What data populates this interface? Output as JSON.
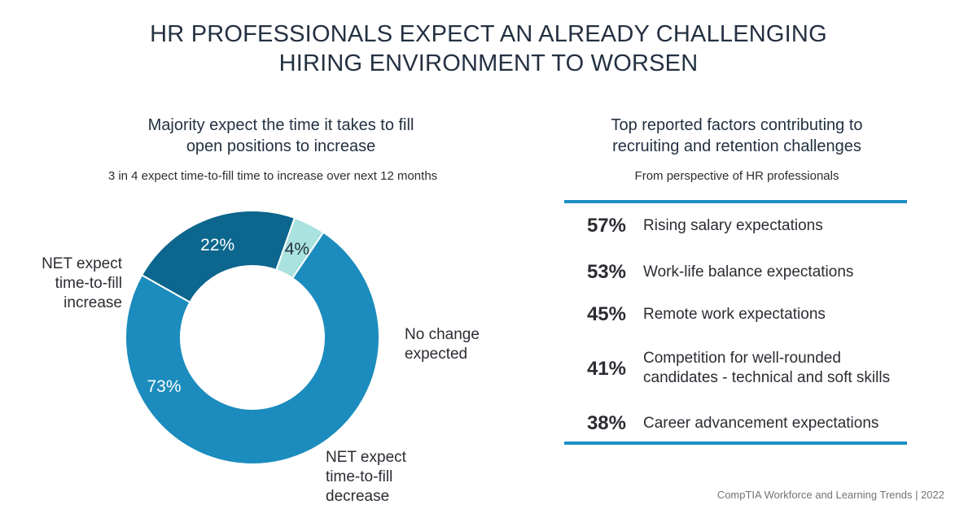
{
  "title": {
    "line1": "HR PROFESSIONALS EXPECT AN ALREADY CHALLENGING",
    "line2": "HIRING ENVIRONMENT TO WORSEN"
  },
  "left_panel": {
    "heading_line1": "Majority expect the time it takes to fill",
    "heading_line2": "open positions to increase",
    "note": "3 in 4 expect time-to-fill time to increase over next 12 months"
  },
  "right_panel": {
    "heading_line1": "Top reported factors contributing to",
    "heading_line2": "recruiting and retention challenges",
    "note": "From perspective of HR professionals"
  },
  "colors": {
    "increase": "#1b8cbd",
    "no_change": "#0c668d",
    "decrease": "#a9e2de",
    "rule": "#1e8fc4",
    "slice_label_light": "#ffffff",
    "slice_label_dark": "#243142"
  },
  "chart_data": [
    {
      "type": "pie",
      "style": "donut",
      "slices": [
        {
          "key": "increase",
          "label_lines": [
            "NET expect",
            "time-to-fill",
            "increase"
          ],
          "value": 73,
          "value_label": "73%"
        },
        {
          "key": "no_change",
          "label_lines": [
            "No change",
            "expected"
          ],
          "value": 22,
          "value_label": "22%"
        },
        {
          "key": "decrease",
          "label_lines": [
            "NET expect",
            "time-to-fill",
            "decrease"
          ],
          "value": 4,
          "value_label": "4%"
        }
      ]
    },
    {
      "type": "table",
      "rows": [
        {
          "value": 57,
          "value_label": "57%",
          "label_lines": [
            "Rising salary expectations"
          ]
        },
        {
          "value": 53,
          "value_label": "53%",
          "label_lines": [
            "Work-life balance expectations"
          ]
        },
        {
          "value": 45,
          "value_label": "45%",
          "label_lines": [
            "Remote work expectations"
          ]
        },
        {
          "value": 41,
          "value_label": "41%",
          "label_lines": [
            "Competition for well-rounded",
            "candidates - technical and soft skills"
          ]
        },
        {
          "value": 38,
          "value_label": "38%",
          "label_lines": [
            "Career advancement expectations"
          ]
        }
      ]
    }
  ],
  "source": "CompTIA Workforce and Learning Trends | 2022"
}
